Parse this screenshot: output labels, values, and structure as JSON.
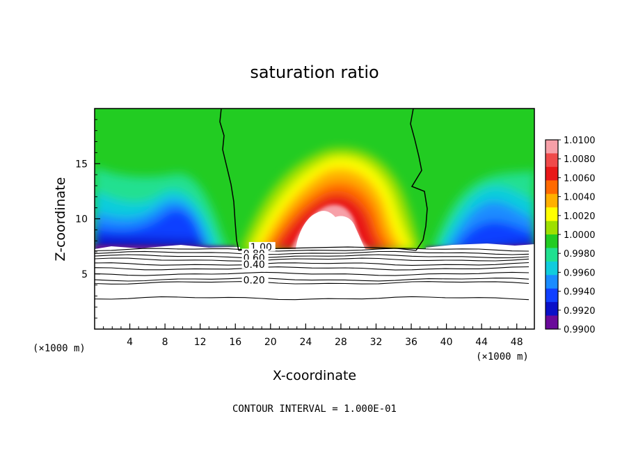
{
  "chart_data": {
    "type": "heatmap",
    "title": "saturation ratio",
    "xlabel": "X-coordinate",
    "ylabel": "Z-coordinate",
    "x_unit": "(×1000 m)",
    "x_unit_bottom": "(×1000 m)",
    "xlim": [
      0,
      50
    ],
    "ylim": [
      0,
      20
    ],
    "x_ticks": [
      4,
      8,
      12,
      16,
      20,
      24,
      28,
      32,
      36,
      40,
      44,
      48
    ],
    "y_ticks": [
      5,
      10,
      15
    ],
    "footer": "CONTOUR INTERVAL = 1.000E-01",
    "colorbar": {
      "labels": [
        "1.0100",
        "1.0080",
        "1.0060",
        "1.0040",
        "1.0020",
        "1.0000",
        "0.9980",
        "0.9960",
        "0.9940",
        "0.9920",
        "0.9900"
      ],
      "colors": [
        "#f7a0a8",
        "#f04a4a",
        "#e81818",
        "#ff6a00",
        "#ffb000",
        "#ffff00",
        "#9ee000",
        "#22cc22",
        "#20e090",
        "#10ccdd",
        "#1a8cff",
        "#1040ff",
        "#0a10c8",
        "#6a0a9a"
      ]
    },
    "contour_labels": [
      "1.00",
      "0.80",
      "0.60",
      "0.40",
      "0.20"
    ],
    "contour_levels": [
      1.0,
      0.9,
      0.8,
      0.7,
      0.6,
      0.5,
      0.4,
      0.3,
      0.2,
      0.1
    ],
    "contour_z": [
      7.2,
      6.9,
      6.6,
      6.3,
      5.9,
      5.5,
      5.0,
      4.5,
      4.2,
      2.8
    ]
  }
}
